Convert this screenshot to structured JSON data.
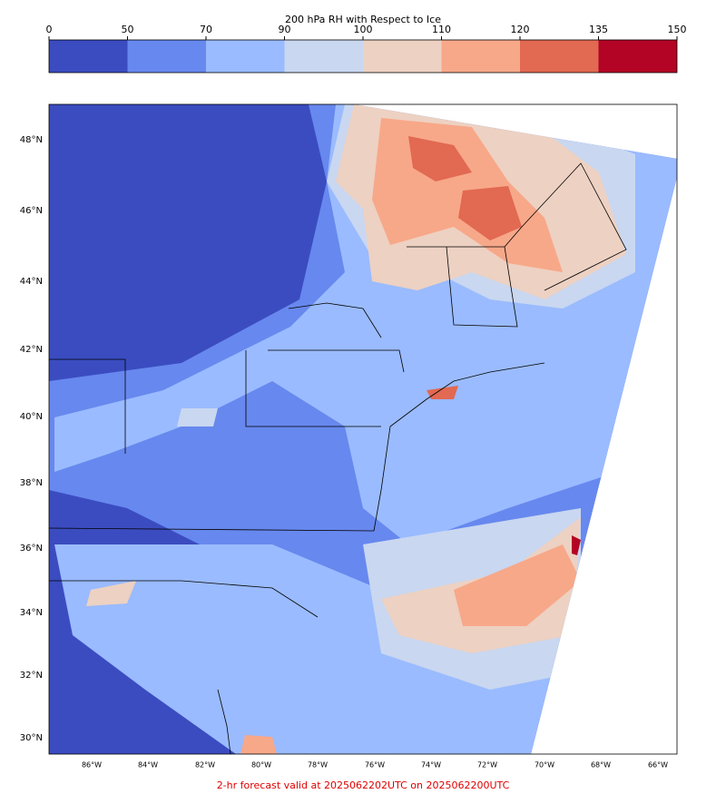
{
  "colorbar": {
    "title": "200 hPa RH with Respect to Ice",
    "ticks": [
      0,
      50,
      70,
      90,
      100,
      110,
      120,
      135,
      150
    ],
    "colors": [
      "#3b4cc0",
      "#6788ee",
      "#9abbff",
      "#c9d7f0",
      "#edd1c2",
      "#f7a889",
      "#e26952",
      "#b40426"
    ]
  },
  "map": {
    "lat_labels": [
      "48°N",
      "46°N",
      "44°N",
      "42°N",
      "40°N",
      "38°N",
      "36°N",
      "34°N",
      "32°N",
      "30°N"
    ],
    "lon_labels": [
      "86°W",
      "84°W",
      "82°W",
      "80°W",
      "78°W",
      "76°W",
      "74°W",
      "72°W",
      "70°W",
      "68°W",
      "66°W"
    ]
  },
  "footer": "2-hr forecast valid at 2025062202UTC on 2025062200UTC"
}
